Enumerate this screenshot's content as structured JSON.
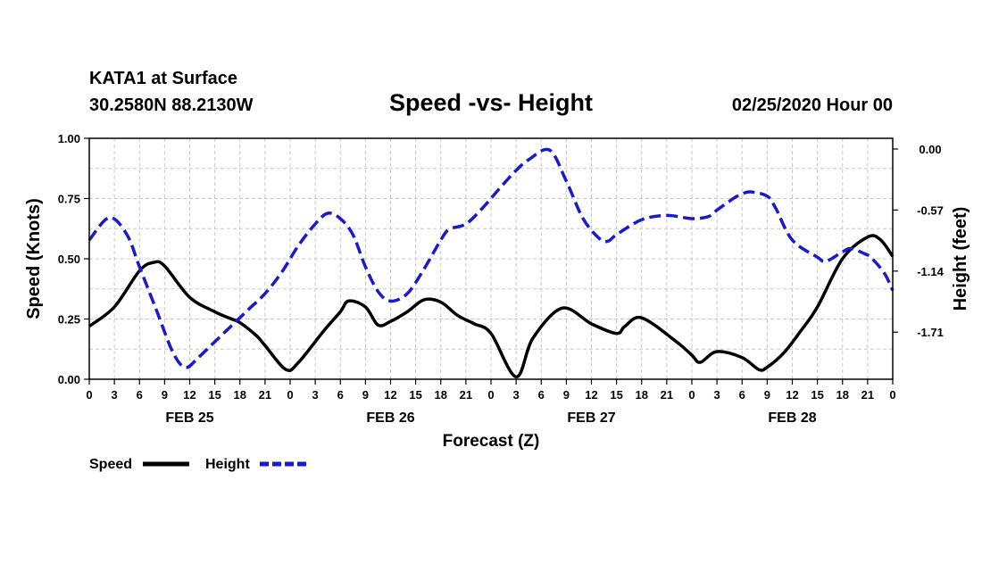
{
  "header": {
    "station": "KATA1 at Surface",
    "coords": "30.2580N 88.2130W",
    "title": "Speed -vs- Height",
    "datetime": "02/25/2020 Hour 00"
  },
  "legend": {
    "speed_label": "Speed",
    "height_label": "Height"
  },
  "colors": {
    "speed": "#000000",
    "height": "#1a1acc",
    "grid": "#c8c8c8"
  },
  "chart_data": {
    "type": "line",
    "title": "Speed -vs- Height",
    "xlabel": "Forecast (Z)",
    "ylabel": "Speed (Knots)",
    "y2label": "Height (feet)",
    "x_range_hours": [
      0,
      96
    ],
    "ylim": [
      0,
      1.0
    ],
    "y2lim": [
      -2.15,
      0.1
    ],
    "y_ticks": [
      "0.00",
      "0.25",
      "0.50",
      "0.75",
      "1.00"
    ],
    "y_tick_values": [
      0,
      0.25,
      0.5,
      0.75,
      1.0
    ],
    "y2_ticks": [
      "0.00",
      "-0.57",
      "-1.14",
      "-1.71"
    ],
    "y2_tick_values": [
      0,
      -0.57,
      -1.14,
      -1.71
    ],
    "x_tick_labels": [
      "0",
      "3",
      "6",
      "9",
      "12",
      "15",
      "18",
      "21",
      "0",
      "3",
      "6",
      "9",
      "12",
      "15",
      "18",
      "21",
      "0",
      "3",
      "6",
      "9",
      "12",
      "15",
      "18",
      "21",
      "0",
      "3",
      "6",
      "9",
      "12",
      "15",
      "18",
      "21",
      "0"
    ],
    "x_tick_hours": [
      0,
      3,
      6,
      9,
      12,
      15,
      18,
      21,
      24,
      27,
      30,
      33,
      36,
      39,
      42,
      45,
      48,
      51,
      54,
      57,
      60,
      63,
      66,
      69,
      72,
      75,
      78,
      81,
      84,
      87,
      90,
      93,
      96
    ],
    "date_labels": [
      "FEB 25",
      "FEB 26",
      "FEB 27",
      "FEB 28"
    ],
    "date_label_hours": [
      12,
      36,
      60,
      84
    ],
    "grid": true,
    "series": [
      {
        "name": "Speed",
        "axis": "left",
        "style": "solid",
        "hours": [
          0,
          3,
          6,
          7.7,
          9,
          12,
          15,
          17,
          18,
          20,
          21,
          23.5,
          25,
          28,
          30,
          31,
          33,
          34.5,
          36,
          38,
          40,
          42,
          44,
          46,
          48,
          51,
          53,
          56.5,
          60,
          63,
          64,
          66,
          70,
          72,
          73,
          75,
          78,
          80,
          81,
          83,
          85,
          87,
          90,
          93,
          94.5,
          96
        ],
        "values": [
          0.22,
          0.3,
          0.45,
          0.485,
          0.47,
          0.34,
          0.28,
          0.25,
          0.235,
          0.18,
          0.14,
          0.04,
          0.07,
          0.2,
          0.28,
          0.325,
          0.3,
          0.225,
          0.24,
          0.28,
          0.33,
          0.32,
          0.265,
          0.23,
          0.19,
          0.01,
          0.17,
          0.295,
          0.23,
          0.19,
          0.22,
          0.255,
          0.16,
          0.1,
          0.07,
          0.115,
          0.09,
          0.04,
          0.05,
          0.11,
          0.2,
          0.3,
          0.5,
          0.59,
          0.58,
          0.51
        ]
      },
      {
        "name": "Height",
        "axis": "right",
        "style": "dashed",
        "hours": [
          0,
          2.4,
          4.5,
          6,
          8,
          10,
          11.5,
          13,
          15,
          17,
          19,
          21,
          23,
          25,
          27,
          28.5,
          30,
          31.5,
          33,
          34.5,
          36,
          38,
          40,
          42,
          43,
          45,
          47,
          49,
          51,
          52.5,
          55,
          57,
          59,
          61,
          62,
          63,
          66,
          69,
          72,
          74,
          75,
          77,
          78,
          79,
          81,
          82,
          84,
          87,
          88,
          90,
          91,
          92.7,
          93.5,
          95,
          96
        ],
        "values": [
          -0.85,
          -0.64,
          -0.8,
          -1.1,
          -1.5,
          -1.9,
          -2.04,
          -1.95,
          -1.8,
          -1.65,
          -1.5,
          -1.35,
          -1.15,
          -0.9,
          -0.7,
          -0.6,
          -0.65,
          -0.8,
          -1.1,
          -1.33,
          -1.42,
          -1.35,
          -1.12,
          -0.85,
          -0.75,
          -0.7,
          -0.55,
          -0.37,
          -0.2,
          -0.1,
          -0.01,
          -0.3,
          -0.65,
          -0.84,
          -0.86,
          -0.8,
          -0.66,
          -0.62,
          -0.65,
          -0.63,
          -0.57,
          -0.46,
          -0.42,
          -0.4,
          -0.44,
          -0.55,
          -0.85,
          -1.01,
          -1.05,
          -0.96,
          -0.93,
          -0.98,
          -1.02,
          -1.16,
          -1.32
        ]
      }
    ]
  }
}
